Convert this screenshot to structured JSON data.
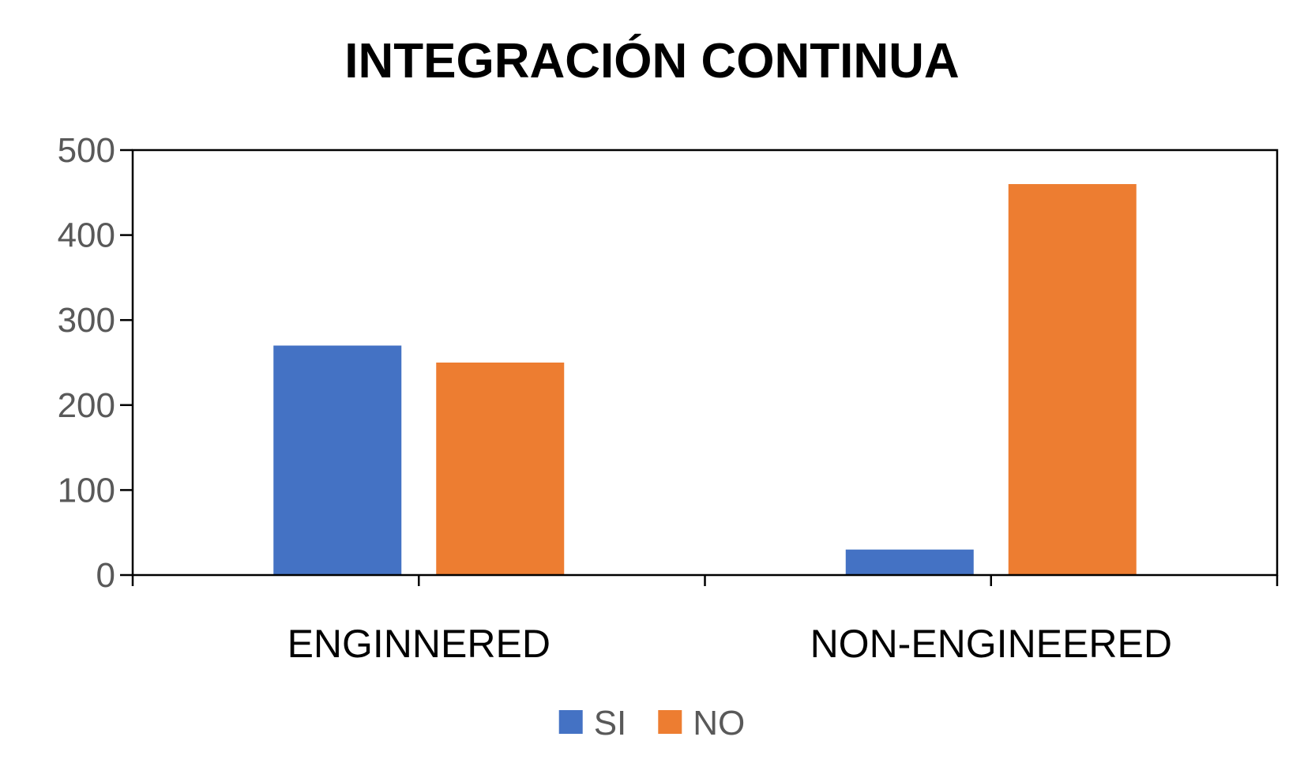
{
  "chart_data": {
    "type": "bar",
    "title": "INTEGRACIÓN CONTINUA",
    "categories": [
      "ENGINNERED",
      "NON-ENGINEERED"
    ],
    "series": [
      {
        "name": "SI",
        "values": [
          270,
          30
        ],
        "color": "#4472C4"
      },
      {
        "name": "NO",
        "values": [
          250,
          460
        ],
        "color": "#ED7D31"
      }
    ],
    "ylim": [
      0,
      500
    ],
    "yticks": [
      0,
      100,
      200,
      300,
      400,
      500
    ],
    "xlabel": "",
    "ylabel": "",
    "grid": false,
    "legend": "bottom"
  }
}
